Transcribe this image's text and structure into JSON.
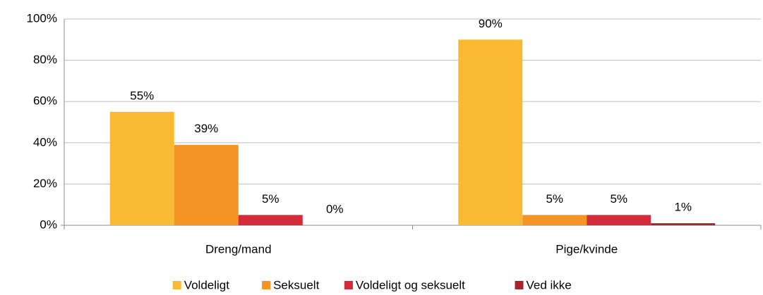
{
  "chart_data": {
    "type": "bar",
    "categories": [
      "Dreng/mand",
      "Pige/kvinde"
    ],
    "series": [
      {
        "name": "Voldeligt",
        "color": "#f9b932",
        "values": [
          55,
          90
        ],
        "value_labels": [
          "55%",
          "90%"
        ]
      },
      {
        "name": "Seksuelt",
        "color": "#f39425",
        "values": [
          39,
          5
        ],
        "value_labels": [
          "39%",
          "5%"
        ]
      },
      {
        "name": "Voldeligt og seksuelt",
        "color": "#d42a3a",
        "values": [
          5,
          5
        ],
        "value_labels": [
          "5%",
          "5%"
        ]
      },
      {
        "name": "Ved ikke",
        "color": "#a8232e",
        "values": [
          0,
          1
        ],
        "value_labels": [
          "0%",
          "1%"
        ]
      }
    ],
    "ylim": [
      0,
      100
    ],
    "yticks": [
      {
        "value": 0,
        "label": "0%"
      },
      {
        "value": 20,
        "label": "20%"
      },
      {
        "value": 40,
        "label": "40%"
      },
      {
        "value": 60,
        "label": "60%"
      },
      {
        "value": 80,
        "label": "80%"
      },
      {
        "value": 100,
        "label": "100%"
      }
    ],
    "grid": true,
    "legend": "bottom"
  }
}
